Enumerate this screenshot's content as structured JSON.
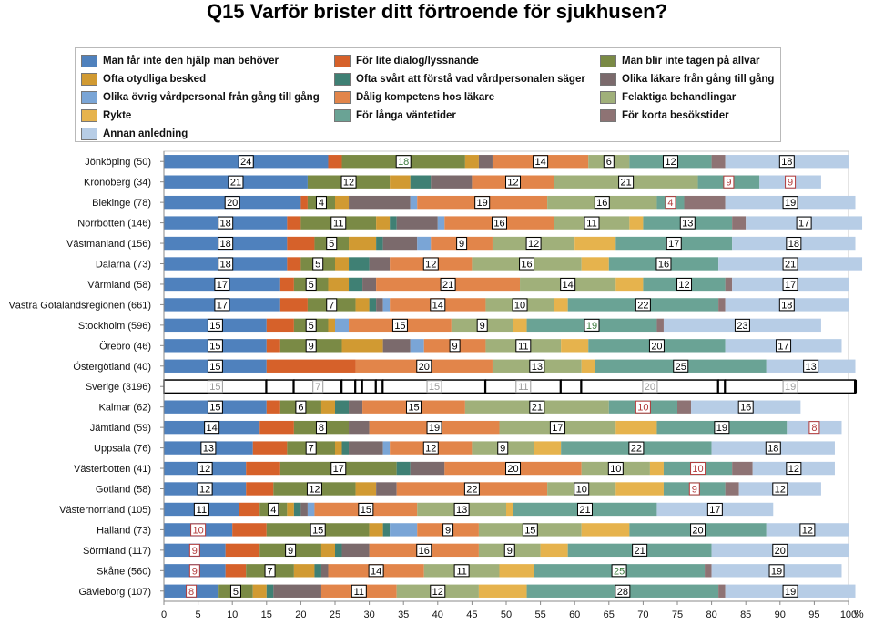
{
  "title": "Q15 Varför brister ditt förtroende för sjukhusen?",
  "legend": [
    {
      "label": "Man får inte den hjälp man behöver",
      "color": "#4f81bd"
    },
    {
      "label": "Ofta otydliga besked",
      "color": "#d19a32"
    },
    {
      "label": "Olika övrig vårdpersonal från gång till gång",
      "color": "#7aa5d6"
    },
    {
      "label": "Rykte",
      "color": "#e6b34d"
    },
    {
      "label": "Annan anledning",
      "color": "#b7cde6"
    },
    {
      "label": "För lite dialog/lyssnande",
      "color": "#d6612a"
    },
    {
      "label": "Ofta svårt att förstå vad vårdpersonalen säger",
      "color": "#3f8074"
    },
    {
      "label": "Dålig kompetens hos läkare",
      "color": "#e2854a"
    },
    {
      "label": "För långa väntetider",
      "color": "#6aa395"
    },
    {
      "label": "Man blir inte tagen på allvar",
      "color": "#7a8a45"
    },
    {
      "label": "Olika läkare från gång till gång",
      "color": "#7b6a6c"
    },
    {
      "label": "Felaktiga behandlingar",
      "color": "#a0b07a"
    },
    {
      "label": "För korta besökstider",
      "color": "#8e7374"
    }
  ],
  "chart_data": {
    "type": "bar",
    "orientation": "horizontal",
    "stacked": true,
    "title": "Q15 Varför brister ditt förtroende för sjukhusen?",
    "x_unit": "%",
    "xlim": [
      0,
      100
    ],
    "x_ticks": [
      0,
      5,
      10,
      15,
      20,
      25,
      30,
      35,
      40,
      45,
      50,
      55,
      60,
      65,
      70,
      75,
      80,
      85,
      90,
      95,
      100
    ],
    "highlight_category": "Sverige (3196)",
    "segment_order": [
      "Man får inte den hjälp man behöver",
      "För lite dialog/lyssnande",
      "Man blir inte tagen på allvar",
      "Ofta otydliga besked",
      "Ofta svårt att förstå vad vårdpersonalen säger",
      "Olika läkare från gång till gång",
      "Olika övrig vårdpersonal från gång till gång",
      "Dålig kompetens hos läkare",
      "Felaktiga behandlingar",
      "Rykte",
      "För långa väntetider",
      "För korta besökstider",
      "Annan anledning"
    ],
    "rows": [
      {
        "category": "Jönköping (50)",
        "values": [
          24,
          2,
          18,
          2,
          0,
          2,
          0,
          14,
          6,
          0,
          12,
          2,
          18
        ],
        "labels": [
          24,
          null,
          18,
          null,
          null,
          null,
          null,
          14,
          6,
          null,
          12,
          null,
          18
        ]
      },
      {
        "category": "Kronoberg (34)",
        "values": [
          21,
          0,
          12,
          3,
          3,
          6,
          0,
          12,
          21,
          0,
          9,
          0,
          9
        ],
        "labels": [
          21,
          null,
          12,
          null,
          null,
          null,
          null,
          12,
          21,
          null,
          9,
          null,
          9
        ]
      },
      {
        "category": "Blekinge (78)",
        "values": [
          20,
          1,
          4,
          2,
          0,
          9,
          1,
          19,
          16,
          0,
          4,
          6,
          19
        ],
        "labels": [
          20,
          null,
          4,
          null,
          null,
          null,
          null,
          19,
          16,
          null,
          4,
          null,
          19
        ]
      },
      {
        "category": "Norrbotten (146)",
        "values": [
          18,
          2,
          11,
          2,
          1,
          6,
          1,
          16,
          11,
          2,
          13,
          2,
          17
        ],
        "labels": [
          18,
          null,
          11,
          null,
          null,
          null,
          null,
          16,
          11,
          null,
          13,
          null,
          17
        ]
      },
      {
        "category": "Västmanland (156)",
        "values": [
          18,
          4,
          5,
          4,
          1,
          5,
          2,
          9,
          12,
          6,
          17,
          0,
          18
        ],
        "labels": [
          18,
          null,
          5,
          null,
          null,
          null,
          null,
          9,
          12,
          null,
          17,
          null,
          18
        ]
      },
      {
        "category": "Dalarna (73)",
        "values": [
          18,
          2,
          5,
          2,
          3,
          3,
          0,
          12,
          16,
          4,
          16,
          0,
          21
        ],
        "labels": [
          18,
          null,
          5,
          null,
          null,
          null,
          null,
          12,
          16,
          null,
          16,
          null,
          21
        ]
      },
      {
        "category": "Värmland (58)",
        "values": [
          17,
          2,
          5,
          3,
          2,
          2,
          0,
          21,
          14,
          4,
          12,
          1,
          17
        ],
        "labels": [
          17,
          null,
          5,
          null,
          null,
          null,
          null,
          21,
          14,
          null,
          12,
          null,
          17
        ]
      },
      {
        "category": "Västra Götalandsregionen (661)",
        "values": [
          17,
          4,
          7,
          2,
          1,
          1,
          1,
          14,
          10,
          2,
          22,
          1,
          18
        ],
        "labels": [
          17,
          null,
          7,
          null,
          null,
          null,
          null,
          14,
          10,
          null,
          22,
          null,
          18
        ]
      },
      {
        "category": "Stockholm (596)",
        "values": [
          15,
          4,
          5,
          1,
          0,
          0,
          2,
          15,
          9,
          2,
          19,
          1,
          23
        ],
        "labels": [
          15,
          null,
          5,
          null,
          null,
          null,
          null,
          15,
          9,
          null,
          19,
          null,
          23
        ]
      },
      {
        "category": "Örebro (46)",
        "values": [
          15,
          2,
          9,
          6,
          0,
          4,
          2,
          9,
          11,
          4,
          20,
          0,
          17
        ],
        "labels": [
          15,
          null,
          9,
          null,
          null,
          null,
          null,
          9,
          11,
          null,
          20,
          null,
          17
        ]
      },
      {
        "category": "Östergötland (40)",
        "values": [
          15,
          13,
          0,
          0,
          0,
          0,
          0,
          20,
          13,
          2,
          25,
          0,
          13
        ],
        "labels": [
          15,
          null,
          null,
          null,
          null,
          null,
          null,
          20,
          13,
          null,
          25,
          null,
          13
        ]
      },
      {
        "category": "Sverige (3196)",
        "values": [
          15,
          4,
          7,
          2,
          1,
          2,
          1,
          15,
          11,
          3,
          20,
          1,
          19
        ],
        "labels": [
          15,
          null,
          7,
          null,
          null,
          null,
          null,
          15,
          11,
          null,
          20,
          null,
          19
        ]
      },
      {
        "category": "Kalmar (62)",
        "values": [
          15,
          2,
          6,
          2,
          2,
          2,
          0,
          15,
          21,
          0,
          10,
          2,
          16
        ],
        "labels": [
          15,
          null,
          6,
          null,
          null,
          null,
          null,
          15,
          21,
          null,
          10,
          null,
          16
        ]
      },
      {
        "category": "Jämtland (59)",
        "values": [
          14,
          5,
          8,
          0,
          0,
          3,
          0,
          19,
          17,
          6,
          19,
          0,
          8
        ],
        "labels": [
          14,
          null,
          8,
          null,
          null,
          null,
          null,
          19,
          17,
          null,
          19,
          null,
          8
        ]
      },
      {
        "category": "Uppsala (76)",
        "values": [
          13,
          5,
          7,
          1,
          1,
          5,
          1,
          12,
          9,
          4,
          22,
          0,
          18
        ],
        "labels": [
          13,
          null,
          7,
          null,
          null,
          null,
          null,
          12,
          9,
          null,
          22,
          null,
          18
        ]
      },
      {
        "category": "Västerbotten (41)",
        "values": [
          12,
          5,
          17,
          0,
          2,
          5,
          0,
          20,
          10,
          2,
          10,
          3,
          12
        ],
        "labels": [
          12,
          null,
          17,
          null,
          null,
          null,
          null,
          20,
          10,
          null,
          10,
          null,
          12
        ]
      },
      {
        "category": "Gotland (58)",
        "values": [
          12,
          4,
          12,
          3,
          0,
          3,
          0,
          22,
          10,
          7,
          9,
          2,
          12
        ],
        "labels": [
          12,
          null,
          12,
          null,
          null,
          null,
          null,
          22,
          10,
          null,
          9,
          null,
          12
        ]
      },
      {
        "category": "Västernorrland (105)",
        "values": [
          11,
          3,
          4,
          1,
          1,
          1,
          1,
          15,
          13,
          1,
          21,
          0,
          17
        ],
        "labels": [
          11,
          null,
          4,
          null,
          null,
          null,
          null,
          15,
          13,
          null,
          21,
          null,
          17
        ]
      },
      {
        "category": "Halland (73)",
        "values": [
          10,
          5,
          15,
          2,
          1,
          0,
          4,
          9,
          15,
          7,
          20,
          0,
          12
        ],
        "labels": [
          10,
          null,
          15,
          null,
          null,
          null,
          null,
          9,
          15,
          null,
          20,
          null,
          12
        ]
      },
      {
        "category": "Sörmland (117)",
        "values": [
          9,
          5,
          9,
          2,
          1,
          4,
          0,
          16,
          9,
          4,
          21,
          0,
          20
        ],
        "labels": [
          9,
          null,
          9,
          null,
          null,
          null,
          null,
          16,
          9,
          null,
          21,
          null,
          20
        ]
      },
      {
        "category": "Skåne (560)",
        "values": [
          9,
          3,
          7,
          3,
          1,
          1,
          0,
          14,
          11,
          5,
          25,
          1,
          19
        ],
        "labels": [
          9,
          null,
          7,
          null,
          null,
          null,
          null,
          14,
          11,
          null,
          25,
          null,
          19
        ]
      },
      {
        "category": "Gävleborg (107)",
        "values": [
          8,
          0,
          5,
          2,
          1,
          7,
          0,
          11,
          12,
          7,
          28,
          1,
          19
        ],
        "labels": [
          8,
          null,
          5,
          null,
          null,
          null,
          null,
          11,
          12,
          null,
          28,
          null,
          19
        ]
      }
    ]
  }
}
